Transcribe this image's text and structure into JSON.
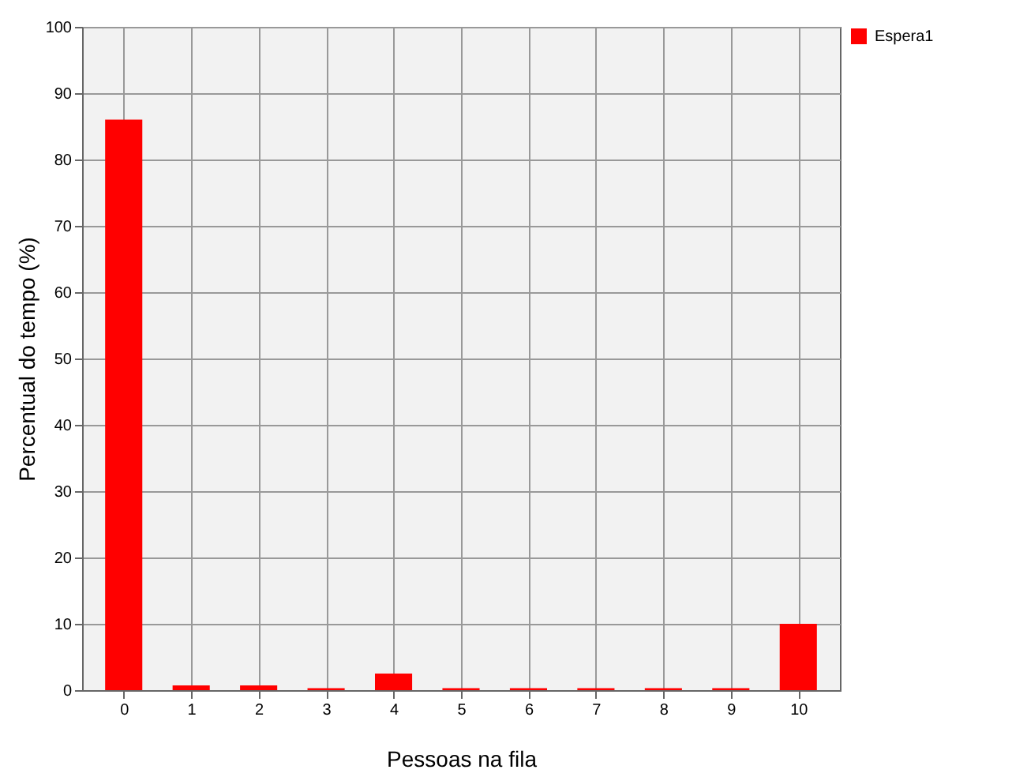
{
  "chart_data": {
    "type": "bar",
    "xlabel": "Pessoas na fila",
    "ylabel": "Percentual do tempo (%)",
    "categories": [
      "0",
      "1",
      "2",
      "3",
      "4",
      "5",
      "6",
      "7",
      "8",
      "9",
      "10"
    ],
    "series": [
      {
        "name": "Espera1",
        "color": "#ff0000",
        "values": [
          86,
          0.7,
          0.7,
          0.3,
          2.5,
          0.3,
          0.3,
          0.3,
          0.3,
          0.3,
          10
        ]
      }
    ],
    "ylim": [
      0,
      100
    ],
    "yticks": [
      0,
      10,
      20,
      30,
      40,
      50,
      60,
      70,
      80,
      90,
      100
    ],
    "grid": true,
    "legend": "top right"
  }
}
